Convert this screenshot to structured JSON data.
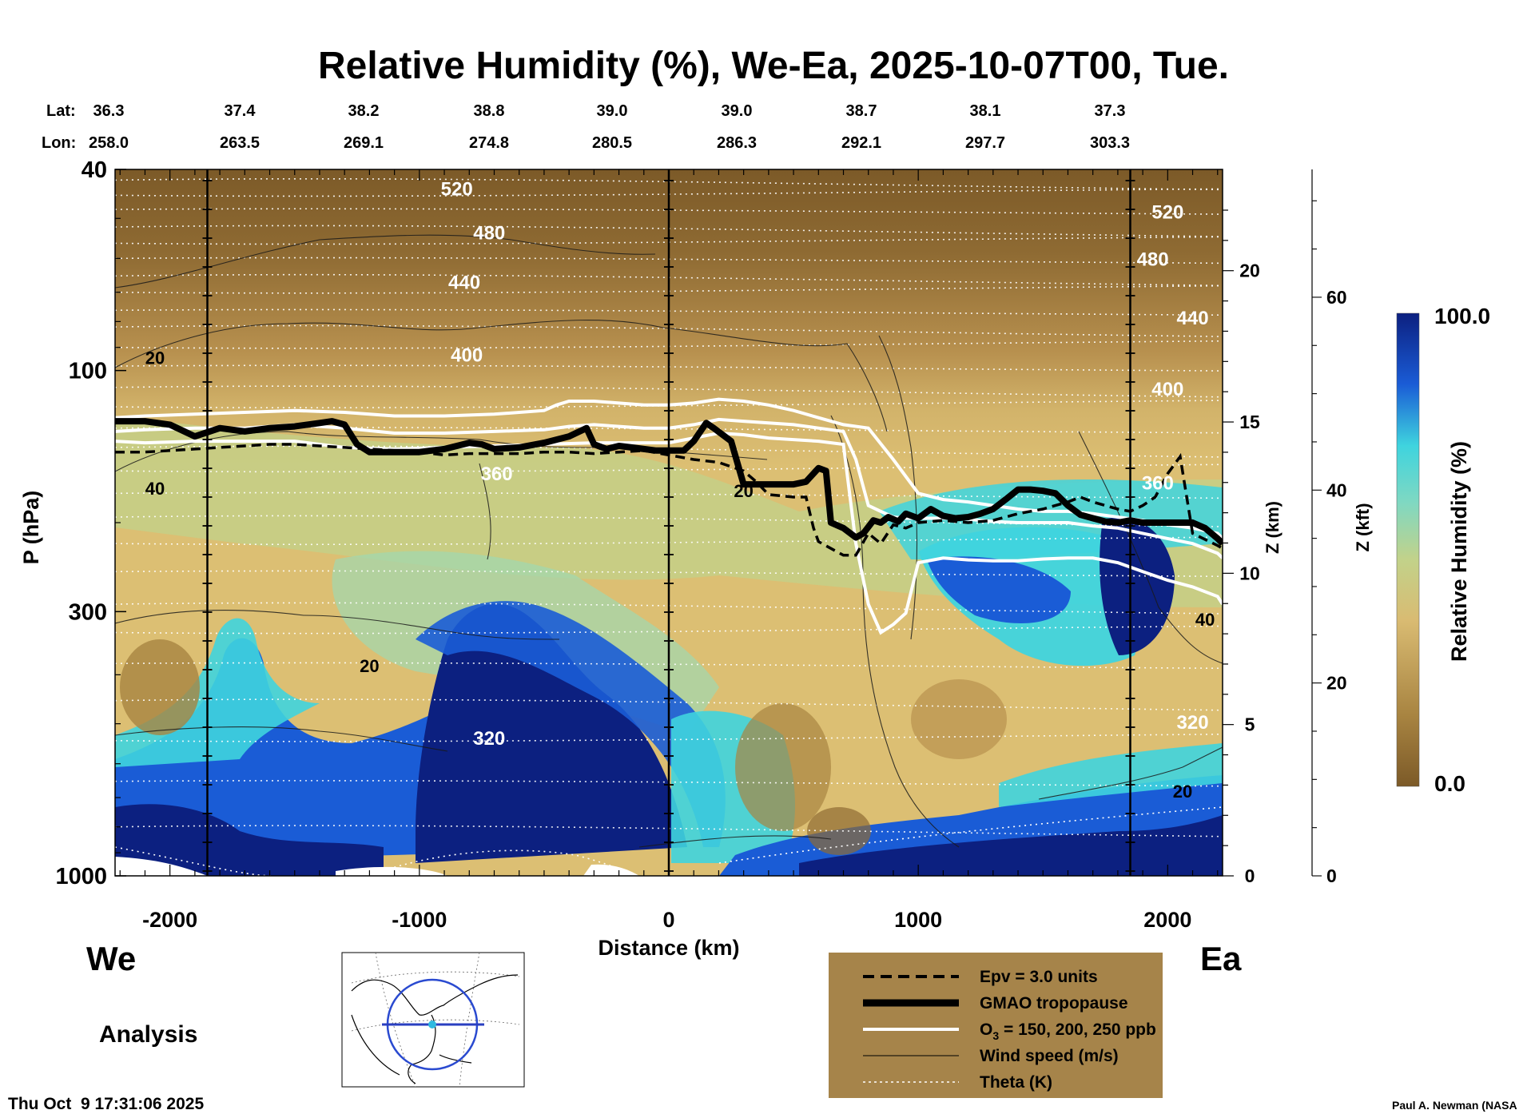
{
  "chart_data": {
    "type": "heatmap",
    "title": "Relative Humidity (%), We-Ea, 2025-10-07T00, Tue.",
    "xlabel": "Distance (km)",
    "ylabel": "P (hPa)",
    "y2label": "Z (km)",
    "y3label": "Z (kft)",
    "colorbar_label": "Relative Humidity (%)",
    "colorbar_max": "100.0",
    "colorbar_min": "0.0",
    "xlim": [
      -2220,
      2220
    ],
    "ylim": [
      1000,
      40
    ],
    "x_ticks": [
      {
        "value": -2000,
        "label": "-2000"
      },
      {
        "value": -1000,
        "label": "-1000"
      },
      {
        "value": 0,
        "label": "0"
      },
      {
        "value": 1000,
        "label": "1000"
      },
      {
        "value": 2000,
        "label": "2000"
      }
    ],
    "y_ticks": [
      {
        "value": 40,
        "label": "40"
      },
      {
        "value": 100,
        "label": "100"
      },
      {
        "value": 300,
        "label": "300"
      },
      {
        "value": 1000,
        "label": "1000"
      }
    ],
    "z_km_ticks": [
      {
        "value": 0,
        "label": "0"
      },
      {
        "value": 5,
        "label": "5"
      },
      {
        "value": 10,
        "label": "10"
      },
      {
        "value": 15,
        "label": "15"
      },
      {
        "value": 20,
        "label": "20"
      }
    ],
    "z_kft_ticks": [
      {
        "value": 0,
        "label": "0"
      },
      {
        "value": 20,
        "label": "20"
      },
      {
        "value": 40,
        "label": "40"
      },
      {
        "value": 60,
        "label": "60"
      }
    ],
    "lat_label": "Lat:",
    "lon_label": "Lon:",
    "lat": [
      "36.3",
      "37.4",
      "38.2",
      "38.8",
      "39.0",
      "39.0",
      "38.7",
      "38.1",
      "37.3"
    ],
    "lon": [
      "258.0",
      "263.5",
      "269.1",
      "274.8",
      "280.5",
      "286.3",
      "292.1",
      "297.7",
      "303.3"
    ],
    "vertical_markers_km": [
      -1850,
      0,
      1850
    ],
    "theta_labels": [
      {
        "text": "520",
        "x": -850,
        "p": 45
      },
      {
        "text": "480",
        "x": -720,
        "p": 55
      },
      {
        "text": "440",
        "x": -820,
        "p": 69
      },
      {
        "text": "400",
        "x": -810,
        "p": 96
      },
      {
        "text": "360",
        "x": -690,
        "p": 165
      },
      {
        "text": "320",
        "x": -720,
        "p": 550
      },
      {
        "text": "520",
        "x": 2000,
        "p": 50
      },
      {
        "text": "480",
        "x": 1940,
        "p": 62
      },
      {
        "text": "440",
        "x": 2100,
        "p": 81
      },
      {
        "text": "400",
        "x": 2000,
        "p": 112
      },
      {
        "text": "360",
        "x": 1960,
        "p": 172
      },
      {
        "text": "320",
        "x": 2100,
        "p": 512
      }
    ],
    "wind_labels": [
      {
        "text": "20",
        "x": -2060,
        "p": 97
      },
      {
        "text": "40",
        "x": -2060,
        "p": 176
      },
      {
        "text": "20",
        "x": -1200,
        "p": 395
      },
      {
        "text": "20",
        "x": 300,
        "p": 178
      },
      {
        "text": "40",
        "x": 2150,
        "p": 320
      },
      {
        "text": "20",
        "x": 2060,
        "p": 700
      }
    ],
    "series": [
      {
        "name": "GMAO tropopause",
        "x": [
          -2220,
          -2100,
          -2000,
          -1900,
          -1800,
          -1700,
          -1600,
          -1500,
          -1450,
          -1400,
          -1350,
          -1300,
          -1250,
          -1200,
          -1100,
          -1000,
          -900,
          -800,
          -750,
          -700,
          -600,
          -500,
          -400,
          -330,
          -300,
          -250,
          -200,
          -150,
          -100,
          -50,
          0,
          60,
          100,
          150,
          180,
          250,
          300,
          330,
          400,
          500,
          550,
          600,
          630,
          650,
          700,
          750,
          780,
          820,
          850,
          880,
          920,
          950,
          1000,
          1050,
          1100,
          1150,
          1200,
          1250,
          1300,
          1350,
          1400,
          1450,
          1500,
          1550,
          1600,
          1650,
          1700,
          1750,
          1800,
          1850,
          1900,
          2000,
          2100,
          2150,
          2200,
          2220
        ],
        "p": [
          126,
          126,
          128,
          135,
          130,
          132,
          130,
          129,
          128,
          127,
          126,
          128,
          140,
          145,
          145,
          145,
          143,
          139,
          140,
          143,
          142,
          139,
          135,
          130,
          140,
          143,
          141,
          142,
          143,
          144,
          144,
          144,
          138,
          127,
          130,
          138,
          168,
          168,
          168,
          168,
          166,
          156,
          158,
          200,
          205,
          214,
          210,
          198,
          200,
          195,
          199,
          192,
          196,
          188,
          194,
          196,
          195,
          192,
          188,
          180,
          172,
          172,
          173,
          175,
          185,
          193,
          196,
          199,
          200,
          198,
          200,
          200,
          200,
          205,
          215,
          220
        ]
      },
      {
        "name": "Epv = 3.0 units",
        "x": [
          -2220,
          -2100,
          -2000,
          -1900,
          -1800,
          -1700,
          -1600,
          -1500,
          -1400,
          -1300,
          -1200,
          -1100,
          -1000,
          -900,
          -800,
          -700,
          -600,
          -500,
          -400,
          -300,
          -200,
          -100,
          0,
          100,
          200,
          300,
          350,
          400,
          500,
          550,
          580,
          600,
          650,
          700,
          750,
          800,
          850,
          900,
          950,
          1000,
          1100,
          1200,
          1300,
          1400,
          1500,
          1600,
          1650,
          1700,
          1750,
          1800,
          1850,
          1900,
          1950,
          2000,
          2050,
          2100,
          2200,
          2220
        ],
        "p": [
          145,
          145,
          144,
          143,
          142,
          141,
          140,
          140,
          141,
          142,
          143,
          144,
          145,
          147,
          146,
          146,
          146,
          145,
          145,
          146,
          145,
          144,
          147,
          150,
          152,
          158,
          166,
          176,
          178,
          178,
          205,
          218,
          225,
          232,
          232,
          210,
          220,
          202,
          205,
          200,
          198,
          200,
          198,
          192,
          188,
          182,
          178,
          182,
          185,
          188,
          190,
          185,
          178,
          160,
          148,
          210,
          222,
          225
        ]
      },
      {
        "name": "O3 = 150 ppb",
        "x": [
          -2220,
          -2100,
          -1900,
          -1700,
          -1500,
          -1300,
          -1100,
          -900,
          -700,
          -500,
          -300,
          -100,
          0,
          100,
          200,
          300,
          400,
          500,
          600,
          700,
          750,
          800,
          850,
          900,
          950,
          1000,
          1100,
          1200,
          1300,
          1400,
          1500,
          1600,
          1700,
          1800,
          1900,
          2000,
          2100,
          2200,
          2220
        ],
        "p": [
          138,
          139,
          138,
          138,
          138,
          142,
          143,
          142,
          141,
          140,
          139,
          139,
          139,
          136,
          133,
          134,
          136,
          137,
          138,
          140,
          220,
          290,
          330,
          318,
          302,
          240,
          235,
          237,
          238,
          238,
          236,
          235,
          235,
          240,
          250,
          260,
          268,
          280,
          290
        ]
      },
      {
        "name": "O3 = 200 ppb",
        "x": [
          -2220,
          -2100,
          -1900,
          -1700,
          -1500,
          -1300,
          -1100,
          -900,
          -700,
          -500,
          -400,
          -300,
          -200,
          -100,
          0,
          100,
          200,
          300,
          400,
          500,
          600,
          700,
          750,
          800,
          850,
          900,
          950,
          1000,
          1100,
          1200,
          1300,
          1400,
          1500,
          1600,
          1700,
          1800,
          1900,
          2000,
          2100,
          2200,
          2220
        ],
        "p": [
          132,
          131,
          130,
          130,
          128,
          130,
          133,
          133,
          132,
          131,
          129,
          128,
          129,
          130,
          130,
          128,
          125,
          126,
          127,
          128,
          130,
          132,
          150,
          185,
          190,
          195,
          196,
          196,
          196,
          197,
          199,
          200,
          200,
          200,
          203,
          205,
          210,
          215,
          220,
          230,
          235
        ]
      },
      {
        "name": "O3 = 250 ppb",
        "x": [
          -2220,
          -2100,
          -1900,
          -1700,
          -1500,
          -1300,
          -1100,
          -900,
          -700,
          -500,
          -450,
          -400,
          -300,
          -200,
          -100,
          0,
          100,
          200,
          300,
          400,
          500,
          600,
          700,
          800,
          900,
          1000,
          1100,
          1200,
          1300,
          1400,
          1500,
          1600,
          1700,
          1800,
          1900,
          2000,
          2100,
          2200,
          2220
        ],
        "p": [
          124,
          123,
          122,
          121,
          120,
          121,
          123,
          123,
          122,
          120,
          117,
          115,
          115,
          116,
          117,
          117,
          116,
          114,
          115,
          117,
          120,
          124,
          128,
          130,
          150,
          175,
          180,
          182,
          185,
          188,
          190,
          190,
          192,
          195,
          198,
          202,
          205,
          210,
          215
        ]
      }
    ]
  },
  "legend": {
    "items": [
      "Epv = 3.0 units",
      "GMAO tropopause",
      "O",
      "3",
      " = 150, 200, 250 ppb",
      "Wind speed (m/s)",
      "Theta (K)"
    ]
  },
  "footer": {
    "west": "We",
    "east": "Ea",
    "analysis": "Analysis",
    "timestamp": "Thu Oct  9 17:31:06 2025",
    "credit": "Paul A. Newman (NASA"
  },
  "colors": {
    "brown_dark": "#7c5a28",
    "brown_mid": "#b8914f",
    "tan": "#dcbf73",
    "yellow_green": "#c2d28a",
    "cyan": "#3fd4de",
    "blue": "#1a5cd6",
    "navy": "#0c2080",
    "legend_bg": "#a6844a"
  }
}
